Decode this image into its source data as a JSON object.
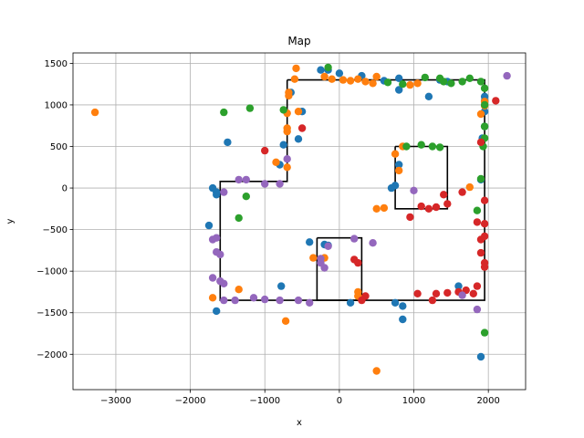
{
  "chart_data": {
    "type": "scatter",
    "title": "Map",
    "xlabel": "x",
    "ylabel": "y",
    "xlim": [
      -3575,
      2500
    ],
    "ylim": [
      -2425,
      1625
    ],
    "grid": true,
    "xticks": [
      -3000,
      -2000,
      -1000,
      0,
      1000,
      2000
    ],
    "xtick_labels": [
      "−3000",
      "−2000",
      "−1000",
      "0",
      "1000",
      "2000"
    ],
    "yticks": [
      -2000,
      -1500,
      -1000,
      -500,
      0,
      500,
      1000,
      1500
    ],
    "ytick_labels": [
      "−2000",
      "−1500",
      "−1000",
      "−500",
      "0",
      "500",
      "1000",
      "1500"
    ],
    "walls": [
      {
        "points": [
          [
            -700,
            1300
          ],
          [
            1950,
            1300
          ],
          [
            1950,
            -1350
          ],
          [
            -1600,
            -1350
          ],
          [
            -1600,
            80
          ],
          [
            -700,
            80
          ],
          [
            -700,
            1300
          ]
        ]
      },
      {
        "points": [
          [
            750,
            500
          ],
          [
            1450,
            500
          ],
          [
            1450,
            -250
          ],
          [
            750,
            -250
          ],
          [
            750,
            500
          ]
        ]
      },
      {
        "points": [
          [
            -300,
            -600
          ],
          [
            300,
            -600
          ],
          [
            300,
            -1350
          ],
          [
            -300,
            -1350
          ],
          [
            -300,
            -600
          ]
        ]
      }
    ],
    "series": [
      {
        "color": "#1f77b4",
        "points": [
          [
            -1700,
            0
          ],
          [
            -1650,
            -50
          ],
          [
            -1650,
            -80
          ],
          [
            -1750,
            -450
          ],
          [
            -1500,
            550
          ],
          [
            -1650,
            -1480
          ],
          [
            -800,
            280
          ],
          [
            -750,
            520
          ],
          [
            -650,
            1150
          ],
          [
            -550,
            590
          ],
          [
            -500,
            920
          ],
          [
            -250,
            1420
          ],
          [
            -150,
            1420
          ],
          [
            0,
            1380
          ],
          [
            300,
            1350
          ],
          [
            600,
            1290
          ],
          [
            800,
            1320
          ],
          [
            800,
            1180
          ],
          [
            1200,
            1100
          ],
          [
            1350,
            1300
          ],
          [
            1450,
            1280
          ],
          [
            1950,
            1100
          ],
          [
            1950,
            1050
          ],
          [
            1950,
            920
          ],
          [
            1950,
            740
          ],
          [
            1920,
            600
          ],
          [
            1900,
            100
          ],
          [
            800,
            280
          ],
          [
            750,
            30
          ],
          [
            700,
            0
          ],
          [
            -400,
            -650
          ],
          [
            -200,
            -680
          ],
          [
            -150,
            -690
          ],
          [
            150,
            -1380
          ],
          [
            850,
            -1420
          ],
          [
            750,
            -1380
          ],
          [
            850,
            -1580
          ],
          [
            -780,
            -1180
          ],
          [
            1600,
            -1180
          ],
          [
            1900,
            -2030
          ]
        ]
      },
      {
        "color": "#ff7f0e",
        "points": [
          [
            -3280,
            910
          ],
          [
            -580,
            1440
          ],
          [
            -600,
            1310
          ],
          [
            -680,
            1150
          ],
          [
            -680,
            1110
          ],
          [
            -700,
            900
          ],
          [
            -700,
            720
          ],
          [
            -700,
            680
          ],
          [
            -850,
            310
          ],
          [
            -700,
            250
          ],
          [
            -550,
            920
          ],
          [
            -200,
            1340
          ],
          [
            -100,
            1310
          ],
          [
            50,
            1300
          ],
          [
            150,
            1290
          ],
          [
            250,
            1310
          ],
          [
            350,
            1280
          ],
          [
            450,
            1260
          ],
          [
            500,
            1340
          ],
          [
            950,
            1240
          ],
          [
            1050,
            1260
          ],
          [
            1950,
            1040
          ],
          [
            1950,
            990
          ],
          [
            1900,
            890
          ],
          [
            1750,
            10
          ],
          [
            750,
            410
          ],
          [
            800,
            210
          ],
          [
            600,
            -240
          ],
          [
            500,
            -250
          ],
          [
            850,
            500
          ],
          [
            -350,
            -840
          ],
          [
            -200,
            -840
          ],
          [
            250,
            -1250
          ],
          [
            250,
            -1300
          ],
          [
            -1350,
            -1220
          ],
          [
            -1700,
            -1320
          ],
          [
            -720,
            -1600
          ],
          [
            500,
            -2200
          ]
        ]
      },
      {
        "color": "#2ca02c",
        "points": [
          [
            -1550,
            910
          ],
          [
            -1200,
            960
          ],
          [
            -150,
            1450
          ],
          [
            -750,
            940
          ],
          [
            850,
            1250
          ],
          [
            650,
            1270
          ],
          [
            1150,
            1330
          ],
          [
            1350,
            1320
          ],
          [
            1400,
            1280
          ],
          [
            1500,
            1260
          ],
          [
            1650,
            1280
          ],
          [
            1750,
            1320
          ],
          [
            1900,
            1280
          ],
          [
            1950,
            1200
          ],
          [
            1950,
            1000
          ],
          [
            1950,
            740
          ],
          [
            1950,
            600
          ],
          [
            1930,
            500
          ],
          [
            1900,
            110
          ],
          [
            1850,
            -270
          ],
          [
            1100,
            520
          ],
          [
            900,
            500
          ],
          [
            1250,
            500
          ],
          [
            1350,
            490
          ],
          [
            1950,
            -1740
          ],
          [
            -1250,
            -100
          ],
          [
            -1350,
            -360
          ]
        ]
      },
      {
        "color": "#d62728",
        "points": [
          [
            2100,
            1050
          ],
          [
            1900,
            550
          ],
          [
            -1000,
            450
          ],
          [
            -500,
            720
          ],
          [
            1950,
            -150
          ],
          [
            1950,
            -430
          ],
          [
            1850,
            -410
          ],
          [
            1900,
            -620
          ],
          [
            1950,
            -580
          ],
          [
            1950,
            -900
          ],
          [
            1950,
            -950
          ],
          [
            1900,
            -780
          ],
          [
            1850,
            -1180
          ],
          [
            1800,
            -1270
          ],
          [
            1700,
            -1230
          ],
          [
            1600,
            -1250
          ],
          [
            1450,
            -1260
          ],
          [
            1300,
            -1270
          ],
          [
            1250,
            -1350
          ],
          [
            1050,
            -1270
          ],
          [
            1400,
            -80
          ],
          [
            1450,
            -190
          ],
          [
            1300,
            -230
          ],
          [
            1100,
            -220
          ],
          [
            1200,
            -250
          ],
          [
            950,
            -350
          ],
          [
            200,
            -860
          ],
          [
            250,
            -900
          ],
          [
            350,
            -1300
          ],
          [
            300,
            -1350
          ],
          [
            1650,
            -50
          ]
        ]
      },
      {
        "color": "#9467bd",
        "points": [
          [
            2250,
            1350
          ],
          [
            -1350,
            100
          ],
          [
            -1250,
            100
          ],
          [
            -1000,
            50
          ],
          [
            -800,
            50
          ],
          [
            -700,
            350
          ],
          [
            -1550,
            -50
          ],
          [
            -1650,
            -600
          ],
          [
            -1700,
            -620
          ],
          [
            -1650,
            -770
          ],
          [
            -1600,
            -800
          ],
          [
            -1700,
            -1080
          ],
          [
            -1600,
            -1120
          ],
          [
            -1550,
            -1150
          ],
          [
            -1550,
            -1350
          ],
          [
            -1400,
            -1350
          ],
          [
            -1150,
            -1320
          ],
          [
            -1000,
            -1340
          ],
          [
            -800,
            -1350
          ],
          [
            -550,
            -1350
          ],
          [
            -400,
            -1380
          ],
          [
            -250,
            -900
          ],
          [
            -250,
            -850
          ],
          [
            -200,
            -960
          ],
          [
            -150,
            -700
          ],
          [
            200,
            -610
          ],
          [
            450,
            -660
          ],
          [
            1000,
            -30
          ],
          [
            1650,
            -1290
          ],
          [
            1850,
            -1460
          ]
        ]
      }
    ]
  }
}
